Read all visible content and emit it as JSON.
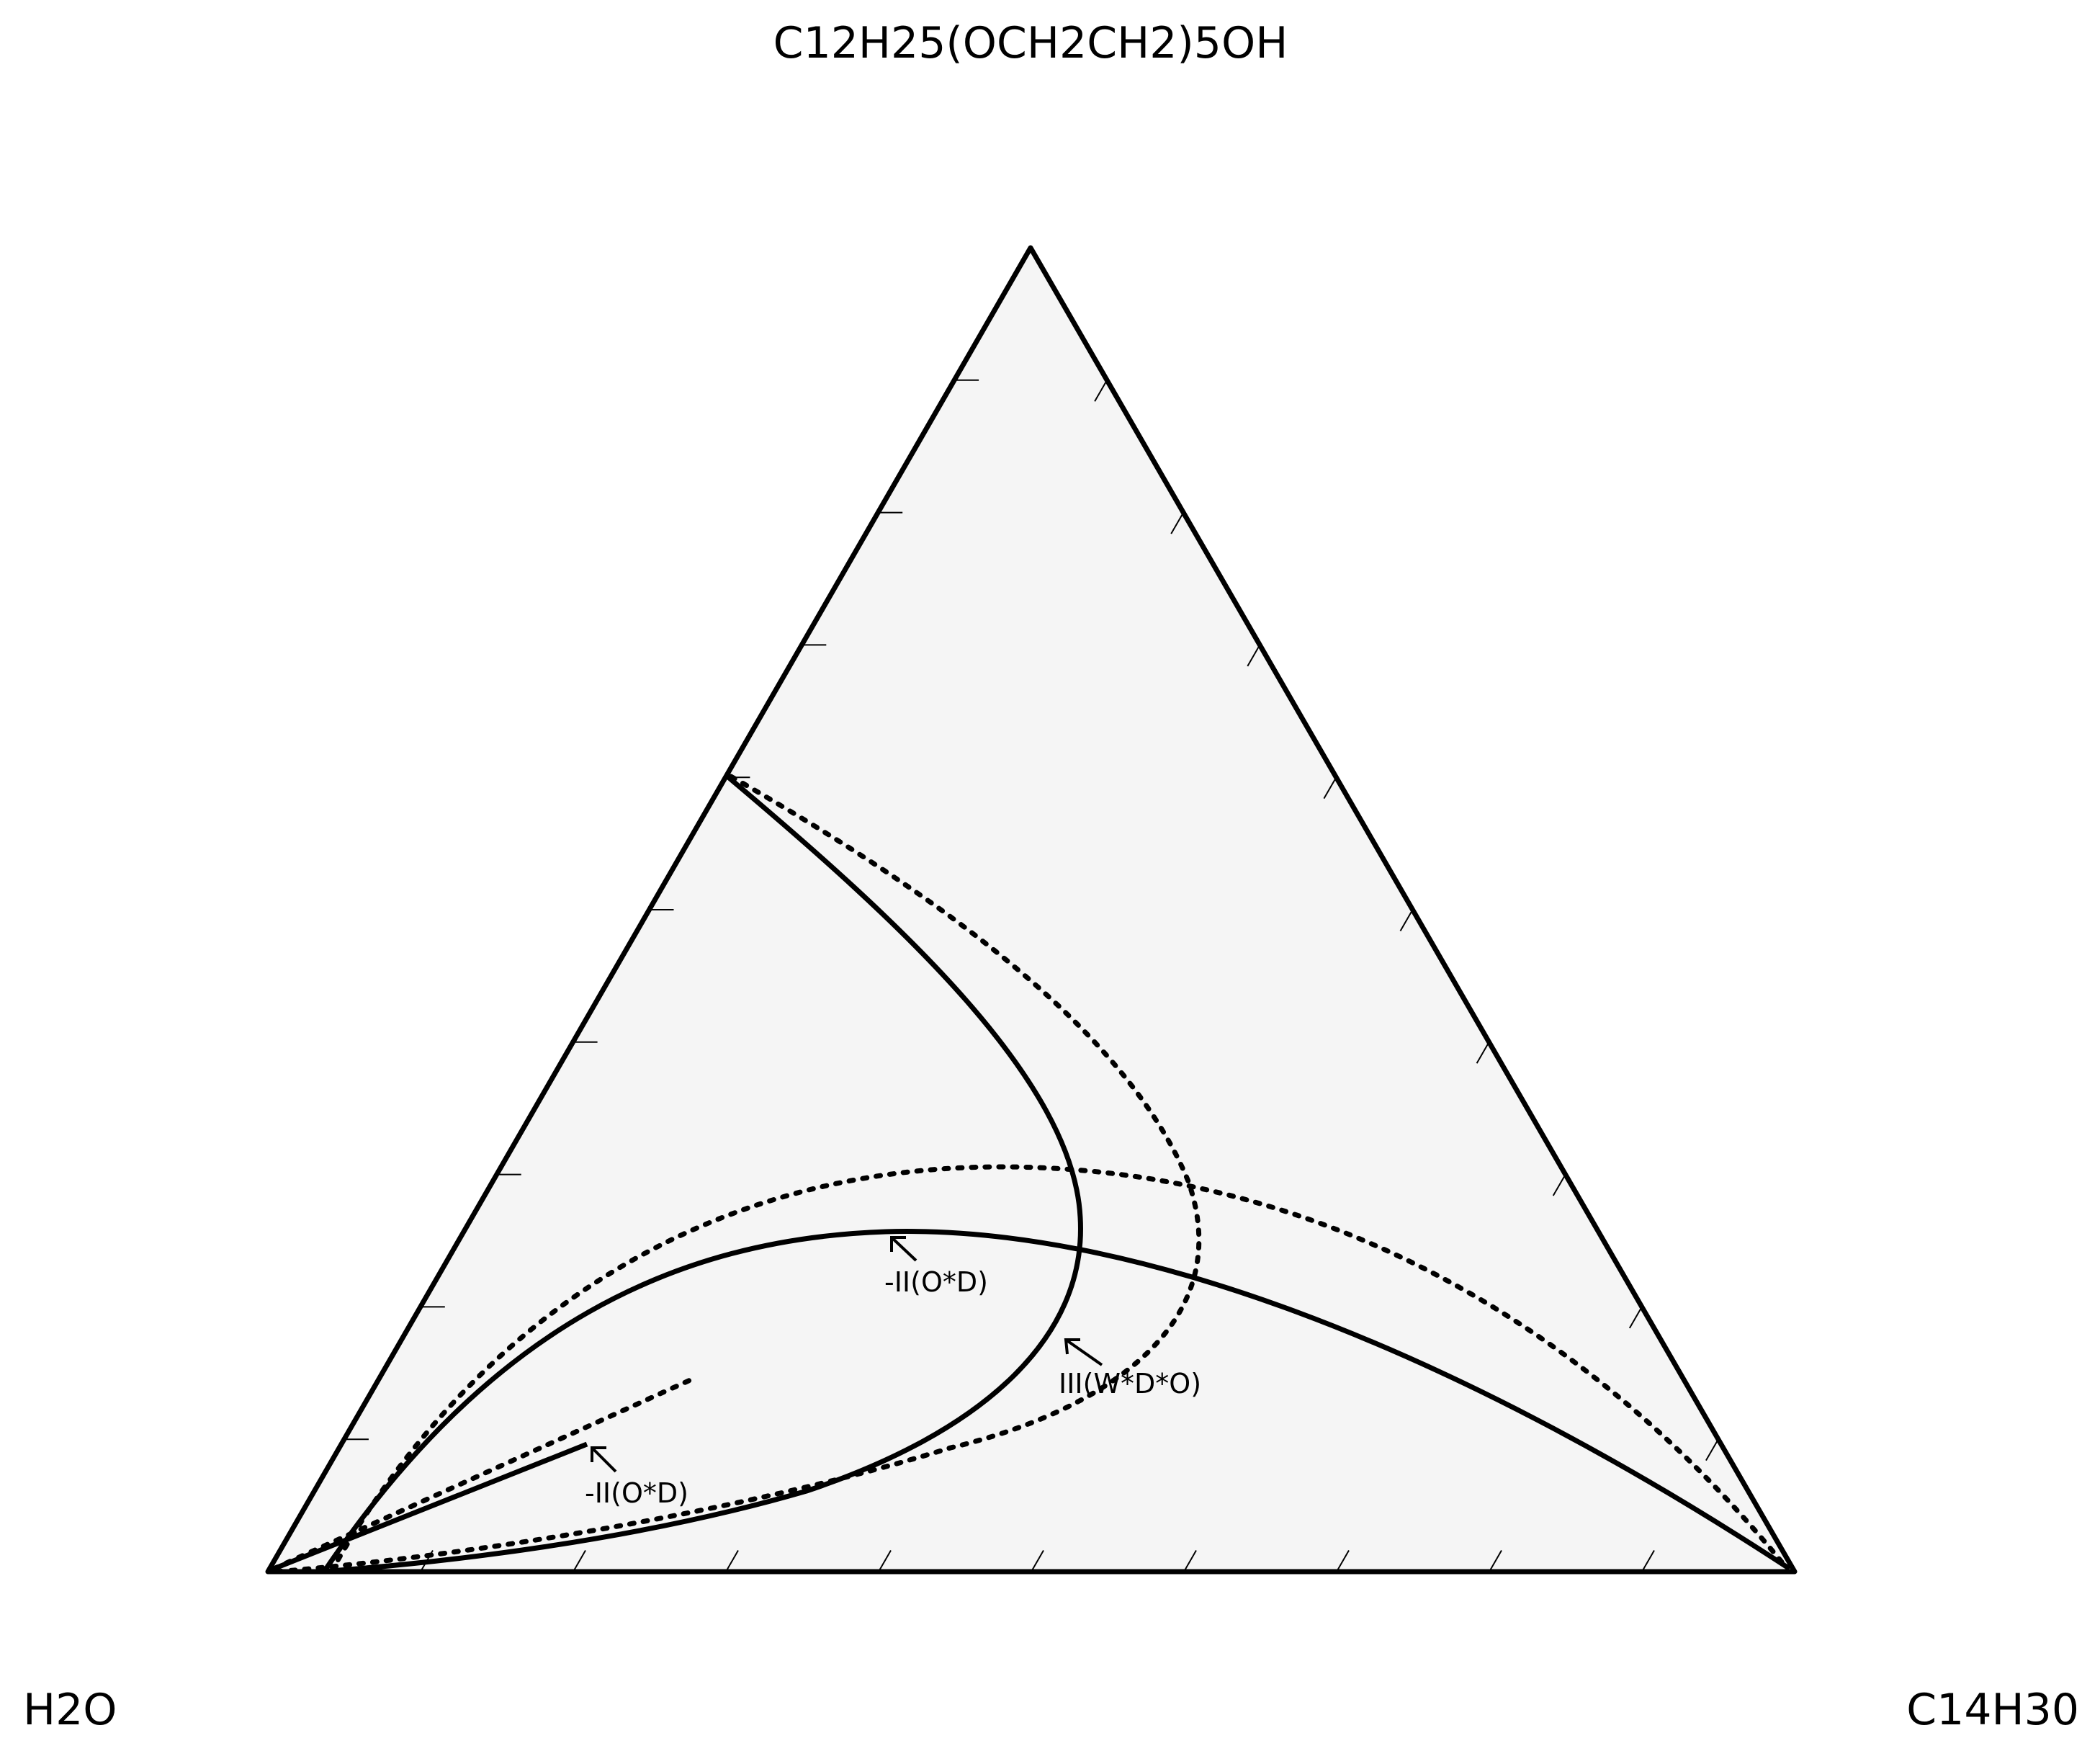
{
  "vertices": {
    "top": "C12H25(OCH2CH2)5OH",
    "left": "H2O",
    "right": "C14H30"
  },
  "annotations": [
    {
      "id": "ann-ii-upper",
      "text": "-II(O*D)"
    },
    {
      "id": "ann-iii",
      "text": "III(W*D*O)"
    },
    {
      "id": "ann-ii-lower",
      "text": "-II(O*D)"
    }
  ],
  "colors": {
    "triangle_fill": "#f5f5f5",
    "line": "#000000"
  },
  "chart_data": {
    "type": "ternary",
    "components": [
      "H2O",
      "C14H30",
      "C12H25(OCH2CH2)5OH"
    ],
    "tick_step": 0.1,
    "phase_boundaries": [
      {
        "label": "III(W*D*O)",
        "style": "solid"
      },
      {
        "label": "III(W*D*O)",
        "style": "dotted"
      },
      {
        "label": "-II(O*D)",
        "style": "solid"
      },
      {
        "label": "-II(O*D)",
        "style": "dotted"
      },
      {
        "label": "-II(O*D)",
        "style": "solid",
        "segment": "short"
      },
      {
        "label": "-II(O*D)",
        "style": "dotted",
        "segment": "short"
      }
    ]
  }
}
